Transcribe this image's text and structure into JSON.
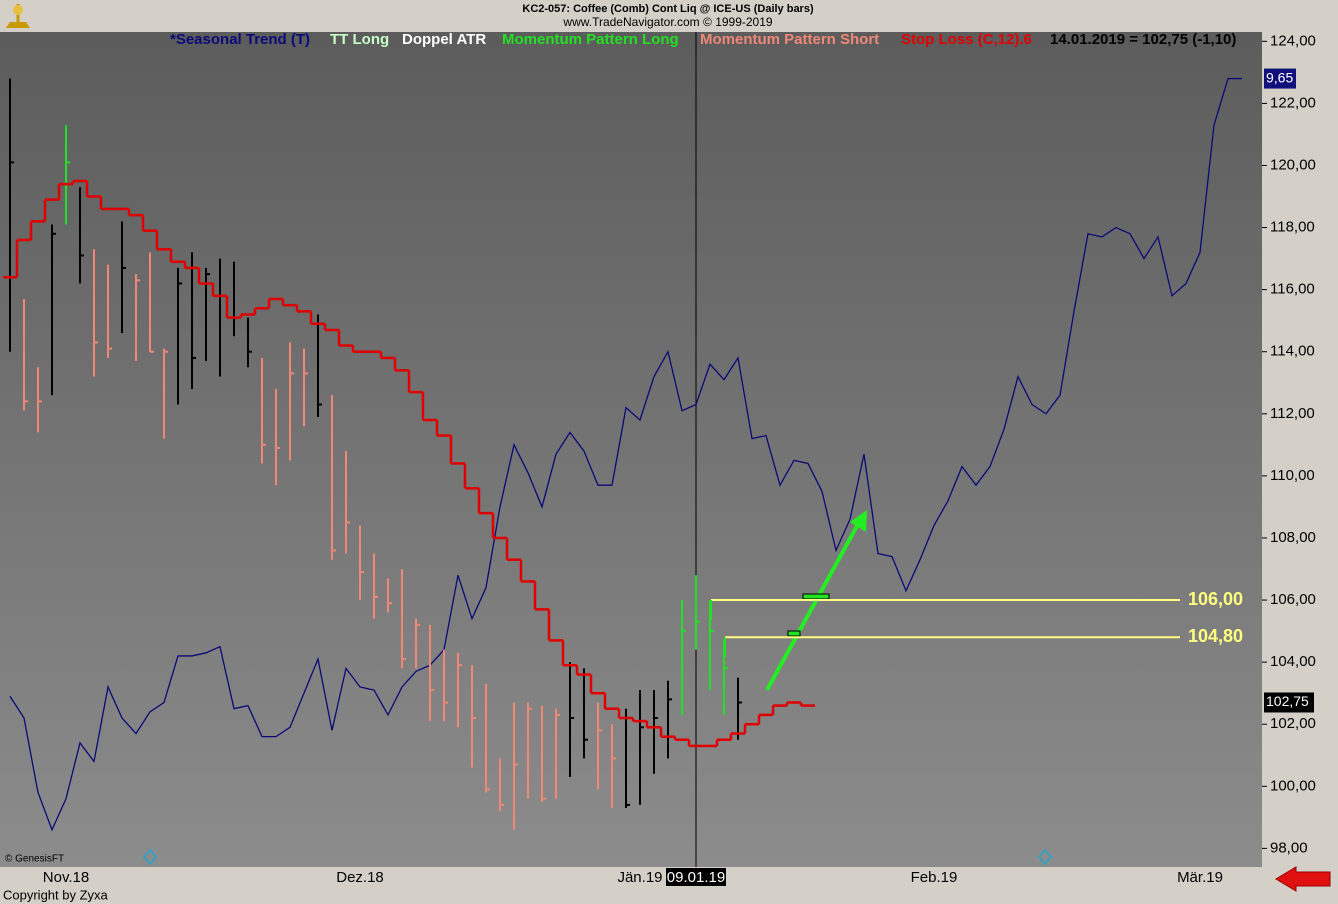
{
  "chart_data": {
    "type": "ohlc",
    "title": "KC2-057:  Coffee (Comb) Cont Liq @ ICE-US  (Daily bars)",
    "subtitle": "www.TradeNavigator.com © 1999-2019",
    "quote": "14.01.2019 = 102,75 (-1,10)",
    "cursor_label": "09.01.19",
    "source": "© GenesisFT",
    "copyright": "Copyright by Zyxa",
    "categories": [
      null,
      null,
      null,
      null,
      "Nov.18",
      null,
      null,
      null,
      null,
      null,
      null,
      null,
      null,
      null,
      null,
      null,
      null,
      null,
      null,
      null,
      null,
      null,
      null,
      null,
      null,
      "Dez.18",
      null,
      null,
      null,
      null,
      null,
      null,
      null,
      null,
      null,
      null,
      null,
      null,
      null,
      null,
      null,
      null,
      null,
      null,
      null,
      "Jän.19",
      null,
      null,
      null,
      null,
      null,
      null,
      null,
      null,
      null,
      null,
      null,
      null,
      null,
      null,
      null,
      null,
      null,
      null,
      null,
      null,
      "Feb.19",
      null,
      null,
      null,
      null,
      null,
      null,
      null,
      null,
      null,
      null,
      null,
      null,
      null,
      null,
      null,
      null,
      null,
      null,
      "Mär.19",
      null,
      null,
      null
    ],
    "ylim": [
      97.4,
      124.3
    ],
    "yticks": [
      {
        "value": 98,
        "label": "98,00"
      },
      {
        "value": 100,
        "label": "100,00"
      },
      {
        "value": 102,
        "label": "102,00"
      },
      {
        "value": 104,
        "label": "104,00"
      },
      {
        "value": 106,
        "label": "106,00"
      },
      {
        "value": 108,
        "label": "108,00"
      },
      {
        "value": 110,
        "label": "110,00"
      },
      {
        "value": 112,
        "label": "112,00"
      },
      {
        "value": 114,
        "label": "114,00"
      },
      {
        "value": 116,
        "label": "116,00"
      },
      {
        "value": 118,
        "label": "118,00"
      },
      {
        "value": 120,
        "label": "120,00"
      },
      {
        "value": 122,
        "label": "122,00"
      },
      {
        "value": 124,
        "label": "124,00"
      }
    ],
    "indicators": [
      {
        "name": "TT Long",
        "color": "#c8ffc8"
      },
      {
        "name": "Doppel ATR",
        "color": "#ffffff"
      },
      {
        "name": "Momentum Pattern Long",
        "color": "#22e022"
      },
      {
        "name": "Momentum Pattern Short",
        "color": "#f08878"
      }
    ],
    "price": {
      "tag": "102,75",
      "high": [
        122.8,
        115.7,
        113.5,
        118.1,
        121.3,
        119.3,
        117.3,
        116.8,
        118.2,
        116.5,
        117.2,
        114.1,
        116.7,
        117.2,
        116.7,
        117.0,
        116.9,
        115.1,
        113.8,
        112.8,
        114.3,
        114.1,
        115.2,
        112.6,
        110.8,
        108.4,
        107.5,
        106.7,
        107.0,
        105.4,
        105.2,
        104.4,
        104.3,
        103.9,
        103.3,
        100.9,
        102.7,
        102.7,
        102.6,
        102.5,
        104.0,
        103.8,
        102.7,
        102.0,
        102.5,
        103.1,
        103.1,
        103.4,
        106.0,
        106.8,
        106.0,
        104.7,
        103.5,
        null,
        null,
        null,
        null,
        null,
        null,
        null,
        null,
        null,
        null,
        null,
        null,
        null,
        null,
        null,
        null,
        null,
        null,
        null,
        null,
        null,
        null,
        null,
        null,
        null,
        null,
        null,
        null,
        null,
        null,
        null,
        null,
        null,
        null,
        null,
        null
      ],
      "low": [
        114.0,
        112.1,
        111.4,
        112.6,
        118.1,
        116.2,
        113.2,
        113.8,
        114.6,
        113.7,
        114.0,
        111.2,
        112.3,
        112.8,
        113.7,
        113.2,
        114.5,
        113.5,
        110.4,
        109.7,
        110.5,
        111.6,
        111.9,
        107.3,
        107.5,
        106.0,
        105.4,
        105.6,
        103.8,
        103.8,
        102.1,
        102.1,
        101.9,
        100.6,
        99.8,
        99.2,
        98.6,
        99.6,
        99.5,
        99.6,
        100.3,
        100.9,
        99.9,
        99.3,
        99.3,
        99.4,
        100.4,
        100.9,
        102.3,
        104.4,
        103.1,
        102.3,
        101.5,
        null,
        null,
        null,
        null,
        null,
        null,
        null,
        null,
        null,
        null,
        null,
        null,
        null,
        null,
        null,
        null,
        null,
        null,
        null,
        null,
        null,
        null,
        null,
        null,
        null,
        null,
        null,
        null,
        null,
        null,
        null,
        null,
        null,
        null,
        null,
        null
      ],
      "close": [
        120.1,
        112.4,
        112.4,
        117.8,
        120.1,
        117.1,
        114.3,
        114.1,
        116.7,
        116.3,
        114.0,
        114.0,
        116.2,
        113.8,
        116.5,
        115.8,
        115.1,
        114.0,
        111.0,
        110.9,
        113.3,
        113.3,
        112.3,
        107.6,
        108.5,
        106.9,
        106.1,
        105.9,
        104.1,
        105.2,
        103.1,
        102.7,
        103.9,
        102.2,
        99.9,
        99.4,
        100.7,
        102.5,
        99.6,
        102.3,
        102.2,
        101.5,
        101.8,
        100.9,
        99.4,
        101.9,
        102.2,
        102.8,
        105.0,
        105.3,
        105.0,
        103.8,
        102.7,
        null,
        null,
        null,
        null,
        null,
        null,
        null,
        null,
        null,
        null,
        null,
        null,
        null,
        null,
        null,
        null,
        null,
        null,
        null,
        null,
        null,
        null,
        null,
        null,
        null,
        null,
        null,
        null,
        null,
        null,
        null,
        null,
        null,
        null,
        null,
        null
      ],
      "colors": [
        "#000000",
        "#f08878",
        "#f08878",
        "#000000",
        "#22e022",
        "#000000",
        "#f08878",
        "#f08878",
        "#000000",
        "#f08878",
        "#f08878",
        "#f08878",
        "#000000",
        "#000000",
        "#000000",
        "#000000",
        "#000000",
        "#000000",
        "#f08878",
        "#f08878",
        "#f08878",
        "#f08878",
        "#000000",
        "#f08878",
        "#f08878",
        "#f08878",
        "#f08878",
        "#f08878",
        "#f08878",
        "#f08878",
        "#f08878",
        "#f08878",
        "#f08878",
        "#f08878",
        "#f08878",
        "#f08878",
        "#f08878",
        "#f08878",
        "#f08878",
        "#f08878",
        "#000000",
        "#000000",
        "#f08878",
        "#f08878",
        "#000000",
        "#000000",
        "#000000",
        "#000000",
        "#22e022",
        "#22e022",
        "#22e022",
        "#22e022",
        "#000000",
        null,
        null,
        null,
        null,
        null,
        null,
        null,
        null,
        null,
        null,
        null,
        null,
        null,
        null,
        null,
        null,
        null,
        null,
        null,
        null,
        null,
        null,
        null,
        null,
        null,
        null,
        null,
        null,
        null,
        null,
        null,
        null,
        null,
        null,
        null,
        null
      ]
    },
    "series": [
      {
        "name": "*Seasonal Trend (T)",
        "color": "#0a0a78",
        "tag": "9,65",
        "values": [
          102.9,
          102.2,
          99.8,
          98.6,
          99.6,
          101.4,
          100.8,
          103.2,
          102.2,
          101.7,
          102.4,
          102.7,
          104.2,
          104.2,
          104.3,
          104.5,
          102.5,
          102.6,
          101.6,
          101.6,
          101.9,
          103.0,
          104.1,
          101.8,
          103.8,
          103.2,
          103.1,
          102.3,
          103.2,
          103.7,
          103.9,
          104.4,
          106.8,
          105.4,
          106.4,
          109.0,
          111.0,
          110.1,
          109.0,
          110.7,
          111.4,
          110.8,
          109.7,
          109.7,
          112.2,
          111.8,
          113.2,
          114.0,
          112.1,
          112.3,
          113.6,
          113.1,
          113.8,
          111.2,
          111.3,
          109.7,
          110.5,
          110.4,
          109.5,
          107.6,
          108.6,
          110.7,
          107.5,
          107.4,
          106.3,
          107.3,
          108.4,
          109.2,
          110.3,
          109.7,
          110.3,
          111.5,
          113.2,
          112.3,
          112.0,
          112.6,
          115.3,
          117.8,
          117.7,
          118.0,
          117.8,
          117.0,
          117.7,
          115.8,
          116.2,
          117.2,
          121.3,
          122.8,
          122.8
        ]
      },
      {
        "name": "Stop Loss (C,12).6",
        "color": "#e00000",
        "values": [
          116.4,
          117.6,
          118.2,
          118.9,
          119.4,
          119.5,
          119.0,
          118.6,
          118.6,
          118.4,
          117.9,
          117.3,
          116.9,
          116.7,
          116.2,
          115.8,
          115.1,
          115.2,
          115.4,
          115.7,
          115.5,
          115.3,
          114.9,
          114.7,
          114.2,
          114.0,
          114.0,
          113.8,
          113.4,
          112.7,
          111.8,
          111.3,
          110.4,
          109.6,
          108.8,
          108.0,
          107.3,
          106.6,
          105.7,
          104.7,
          103.9,
          103.6,
          103.0,
          102.5,
          102.2,
          102.1,
          101.9,
          101.6,
          101.5,
          101.3,
          101.3,
          101.5,
          101.7,
          102.0,
          102.3,
          102.6,
          102.7,
          102.6,
          null,
          null,
          null,
          null,
          null,
          null,
          null,
          null,
          null,
          null,
          null,
          null,
          null,
          null,
          null,
          null,
          null,
          null,
          null,
          null,
          null,
          null,
          null,
          null,
          null,
          null,
          null,
          null,
          null,
          null,
          null
        ]
      }
    ],
    "levels": [
      {
        "value": 106.0,
        "label": "106,00",
        "color": "#ffff80"
      },
      {
        "value": 104.8,
        "label": "104,80",
        "color": "#ffff80"
      }
    ]
  }
}
